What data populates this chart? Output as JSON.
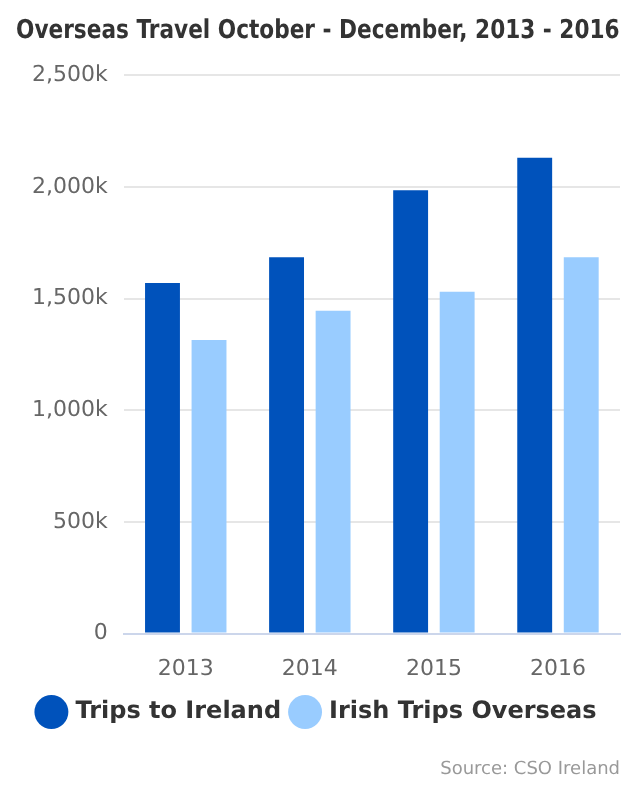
{
  "chart_data": {
    "type": "bar",
    "title": "Overseas Travel October - December, 2013 - 2016",
    "categories": [
      "2013",
      "2014",
      "2015",
      "2016"
    ],
    "series": [
      {
        "name": "Trips to Ireland",
        "color": "#0052bb",
        "values": [
          1570,
          1685,
          1985,
          2130
        ]
      },
      {
        "name": "Irish Trips Overseas",
        "color": "#99ccff",
        "values": [
          1315,
          1445,
          1530,
          1685
        ]
      }
    ],
    "ylim": [
      0,
      2500
    ],
    "yticks": [
      0,
      {
        "value": 500,
        "label": "500k"
      },
      {
        "value": 1000,
        "label": "1,000k"
      },
      {
        "value": 1500,
        "label": "1,500k"
      },
      {
        "value": 2000,
        "label": "2,000k"
      },
      {
        "value": 2500,
        "label": "2,500k"
      }
    ],
    "grid": "y",
    "legend": "bottom",
    "annotations": [
      "Source: CSO Ireland"
    ]
  }
}
